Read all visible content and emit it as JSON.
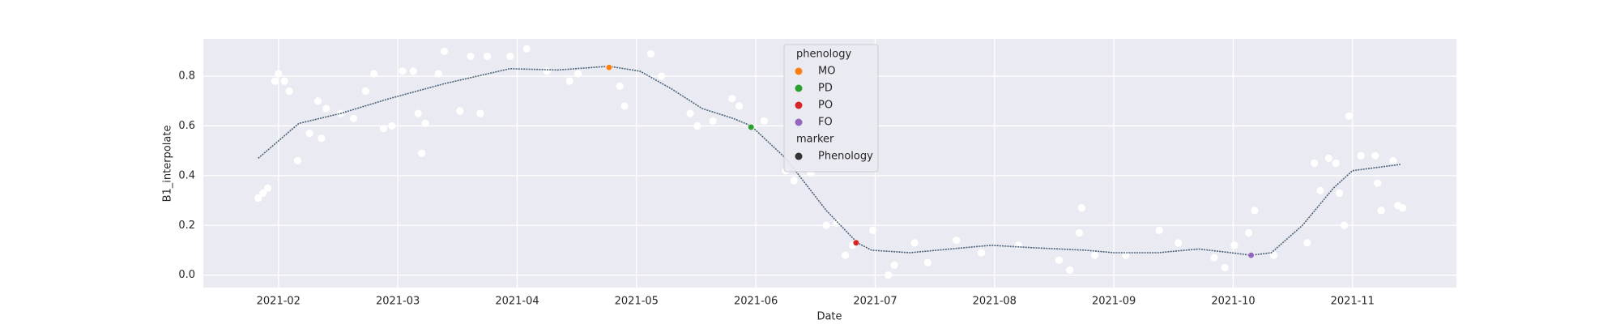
{
  "chart_data": {
    "type": "scatter",
    "xlabel": "Date",
    "ylabel": "B1_interpolate",
    "background": "#eaeaf2",
    "grid": true,
    "xlim": [
      1.37,
      11.87
    ],
    "xticks": [
      {
        "value": 2,
        "label": "2021-02"
      },
      {
        "value": 3,
        "label": "2021-03"
      },
      {
        "value": 4,
        "label": "2021-04"
      },
      {
        "value": 5,
        "label": "2021-05"
      },
      {
        "value": 6,
        "label": "2021-06"
      },
      {
        "value": 7,
        "label": "2021-07"
      },
      {
        "value": 8,
        "label": "2021-08"
      },
      {
        "value": 9,
        "label": "2021-09"
      },
      {
        "value": 10,
        "label": "2021-10"
      },
      {
        "value": 11,
        "label": "2021-11"
      }
    ],
    "ylim": [
      -0.05,
      0.95
    ],
    "yticks": [
      {
        "value": 0,
        "label": "0.0"
      },
      {
        "value": 0.2,
        "label": "0.2"
      },
      {
        "value": 0.4,
        "label": "0.4"
      },
      {
        "value": 0.6,
        "label": "0.6"
      },
      {
        "value": 0.8,
        "label": "0.8"
      }
    ],
    "observations": {
      "color": "#ffffff",
      "x": [
        1.83,
        1.87,
        1.91,
        1.97,
        2.0,
        2.05,
        2.09,
        2.16,
        2.26,
        2.33,
        2.36,
        2.4,
        2.52,
        2.63,
        2.73,
        2.8,
        2.88,
        2.95,
        3.04,
        3.13,
        3.17,
        3.2,
        3.23,
        3.34,
        3.39,
        3.52,
        3.61,
        3.69,
        3.75,
        3.94,
        4.08,
        4.25,
        4.44,
        4.51,
        4.86,
        4.9,
        5.12,
        5.21,
        5.45,
        5.51,
        5.64,
        5.8,
        5.86,
        6.07,
        6.25,
        6.32,
        6.46,
        6.59,
        6.68,
        6.75,
        6.81,
        6.98,
        7.11,
        7.16,
        7.33,
        7.44,
        7.68,
        7.89,
        8.2,
        8.54,
        8.63,
        8.71,
        8.73,
        8.84,
        9.1,
        9.38,
        9.54,
        9.84,
        9.93,
        10.01,
        10.13,
        10.18,
        10.34,
        10.62,
        10.68,
        10.73,
        10.8,
        10.86,
        10.89,
        10.93,
        10.97,
        11.07,
        11.19,
        11.21,
        11.24,
        11.34,
        11.38,
        11.42
      ],
      "values": [
        0.31,
        0.33,
        0.35,
        0.78,
        0.81,
        0.78,
        0.74,
        0.46,
        0.57,
        0.7,
        0.55,
        0.67,
        0.65,
        0.63,
        0.74,
        0.81,
        0.59,
        0.6,
        0.82,
        0.82,
        0.65,
        0.49,
        0.61,
        0.81,
        0.9,
        0.66,
        0.88,
        0.65,
        0.88,
        0.88,
        0.91,
        0.82,
        0.78,
        0.81,
        0.76,
        0.68,
        0.89,
        0.8,
        0.65,
        0.6,
        0.62,
        0.71,
        0.68,
        0.62,
        0.42,
        0.38,
        0.41,
        0.2,
        0.21,
        0.08,
        0.12,
        0.18,
        0.0,
        0.04,
        0.13,
        0.05,
        0.14,
        0.09,
        0.12,
        0.06,
        0.02,
        0.17,
        0.27,
        0.08,
        0.08,
        0.18,
        0.13,
        0.07,
        0.03,
        0.12,
        0.17,
        0.26,
        0.08,
        0.13,
        0.45,
        0.34,
        0.47,
        0.45,
        0.33,
        0.2,
        0.64,
        0.48,
        0.48,
        0.37,
        0.26,
        0.46,
        0.28,
        0.27
      ]
    },
    "curve": {
      "color": "#4a6278",
      "x": [
        1.83,
        2.17,
        2.52,
        2.93,
        3.39,
        3.94,
        4.34,
        4.77,
        5.03,
        5.29,
        5.55,
        5.81,
        5.96,
        6.25,
        6.59,
        6.85,
        6.97,
        7.29,
        7.97,
        8.33,
        8.76,
        9.0,
        9.37,
        9.71,
        9.98,
        10.15,
        10.32,
        10.58,
        10.84,
        11.0,
        11.4
      ],
      "values": [
        0.47,
        0.61,
        0.65,
        0.71,
        0.77,
        0.83,
        0.825,
        0.84,
        0.82,
        0.75,
        0.67,
        0.63,
        0.6,
        0.47,
        0.26,
        0.13,
        0.1,
        0.09,
        0.12,
        0.11,
        0.1,
        0.09,
        0.09,
        0.105,
        0.09,
        0.08,
        0.09,
        0.2,
        0.35,
        0.42,
        0.445
      ]
    },
    "legend_title": "phenology",
    "series": [
      {
        "name": "MO",
        "color": "#ff7f0e",
        "x": [
          4.77
        ],
        "values": [
          0.835
        ]
      },
      {
        "name": "PD",
        "color": "#2ca02c",
        "x": [
          5.96
        ],
        "values": [
          0.595
        ]
      },
      {
        "name": "PO",
        "color": "#d62728",
        "x": [
          6.84
        ],
        "values": [
          0.13
        ]
      },
      {
        "name": "FO",
        "color": "#9467bd",
        "x": [
          10.15
        ],
        "values": [
          0.08
        ]
      }
    ],
    "marker_legend": {
      "title": "marker",
      "name": "Phenology",
      "color": "#333333"
    }
  }
}
